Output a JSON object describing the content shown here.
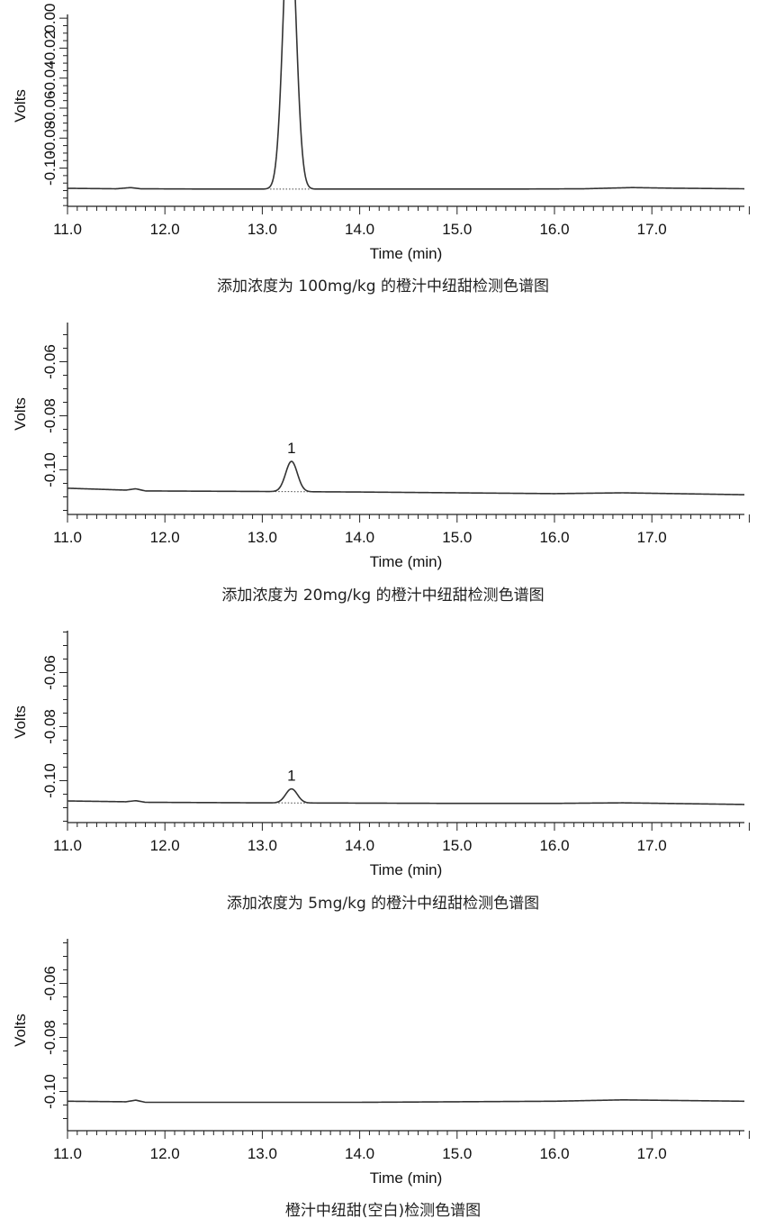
{
  "colors": {
    "trace": "#333333",
    "axis": "#222222",
    "baseline": "#444444"
  },
  "chart_data": [
    {
      "type": "line",
      "caption": "添加浓度为 100mg/kg 的橙汁中纽甜检测色谱图",
      "xlabel": "Time (min)",
      "ylabel": "Volts",
      "xlim": [
        11.0,
        17.95
      ],
      "ylim": [
        -0.1255,
        0.0025
      ],
      "x_ticks": [
        "11.0",
        "12.0",
        "13.0",
        "14.0",
        "15.0",
        "16.0",
        "17.0"
      ],
      "y_ticks": [
        {
          "v": 0.0,
          "t": "0.00"
        },
        {
          "v": -0.02,
          "t": "-0.02"
        },
        {
          "v": -0.04,
          "t": "-0.04"
        },
        {
          "v": -0.06,
          "t": "-0.06"
        },
        {
          "v": -0.08,
          "t": "-0.08"
        },
        {
          "v": -0.1,
          "t": "-0.10"
        }
      ],
      "baseline": [
        [
          11.0,
          -0.1135
        ],
        [
          11.5,
          -0.1138
        ],
        [
          11.65,
          -0.113
        ],
        [
          11.75,
          -0.1138
        ],
        [
          12.5,
          -0.114
        ],
        [
          14.0,
          -0.114
        ],
        [
          15.5,
          -0.114
        ],
        [
          16.3,
          -0.1138
        ],
        [
          16.8,
          -0.113
        ],
        [
          17.2,
          -0.1134
        ],
        [
          17.95,
          -0.1138
        ]
      ],
      "peak": {
        "label": "1",
        "rt": 13.28,
        "height": 0.1905,
        "sigma": 0.065,
        "start": 13.08,
        "end": 13.5
      }
    },
    {
      "type": "line",
      "caption": "添加浓度为 20mg/kg 的橙汁中纽甜检测色谱图",
      "xlabel": "Time (min)",
      "ylabel": "Volts",
      "xlim": [
        11.0,
        17.95
      ],
      "ylim": [
        -0.1165,
        -0.0455
      ],
      "x_ticks": [
        "11.0",
        "12.0",
        "13.0",
        "14.0",
        "15.0",
        "16.0",
        "17.0"
      ],
      "y_ticks": [
        {
          "v": -0.06,
          "t": "-0.06"
        },
        {
          "v": -0.08,
          "t": "-0.08"
        },
        {
          "v": -0.1,
          "t": "-0.10"
        }
      ],
      "baseline": [
        [
          11.0,
          -0.1068
        ],
        [
          11.6,
          -0.1075
        ],
        [
          11.7,
          -0.107
        ],
        [
          11.8,
          -0.1078
        ],
        [
          13.0,
          -0.108
        ],
        [
          14.0,
          -0.1082
        ],
        [
          15.0,
          -0.1085
        ],
        [
          16.0,
          -0.1088
        ],
        [
          16.7,
          -0.1085
        ],
        [
          17.95,
          -0.1092
        ]
      ],
      "peak": {
        "label": "1",
        "rt": 13.3,
        "height": 0.0112,
        "sigma": 0.06,
        "start": 13.1,
        "end": 13.5
      }
    },
    {
      "type": "line",
      "caption": "添加浓度为 5mg/kg 的橙汁中纽甜检测色谱图",
      "xlabel": "Time (min)",
      "ylabel": "Volts",
      "xlim": [
        11.0,
        17.95
      ],
      "ylim": [
        -0.1155,
        -0.0445
      ],
      "x_ticks": [
        "11.0",
        "12.0",
        "13.0",
        "14.0",
        "15.0",
        "16.0",
        "17.0"
      ],
      "y_ticks": [
        {
          "v": -0.06,
          "t": "-0.06"
        },
        {
          "v": -0.08,
          "t": "-0.08"
        },
        {
          "v": -0.1,
          "t": "-0.10"
        }
      ],
      "baseline": [
        [
          11.0,
          -0.1075
        ],
        [
          11.6,
          -0.1078
        ],
        [
          11.7,
          -0.1074
        ],
        [
          11.8,
          -0.108
        ],
        [
          13.0,
          -0.1082
        ],
        [
          14.0,
          -0.1083
        ],
        [
          15.0,
          -0.1084
        ],
        [
          16.0,
          -0.1084
        ],
        [
          16.7,
          -0.1082
        ],
        [
          17.95,
          -0.1088
        ]
      ],
      "peak": {
        "label": "1",
        "rt": 13.3,
        "height": 0.0052,
        "sigma": 0.06,
        "start": 13.1,
        "end": 13.5
      }
    },
    {
      "type": "line",
      "caption": "橙汁中纽甜(空白)检测色谱图",
      "xlabel": "Time (min)",
      "ylabel": "Volts",
      "xlim": [
        11.0,
        17.95
      ],
      "ylim": [
        -0.1145,
        -0.0435
      ],
      "x_ticks": [
        "11.0",
        "12.0",
        "13.0",
        "14.0",
        "15.0",
        "16.0",
        "17.0"
      ],
      "y_ticks": [
        {
          "v": -0.06,
          "t": "-0.06"
        },
        {
          "v": -0.08,
          "t": "-0.08"
        },
        {
          "v": -0.1,
          "t": "-0.10"
        }
      ],
      "baseline": [
        [
          11.0,
          -0.1036
        ],
        [
          11.6,
          -0.1038
        ],
        [
          11.7,
          -0.1032
        ],
        [
          11.8,
          -0.104
        ],
        [
          13.0,
          -0.104
        ],
        [
          14.0,
          -0.104
        ],
        [
          15.0,
          -0.1038
        ],
        [
          16.0,
          -0.1036
        ],
        [
          16.7,
          -0.1031
        ],
        [
          17.95,
          -0.1036
        ]
      ],
      "peak": null
    }
  ]
}
